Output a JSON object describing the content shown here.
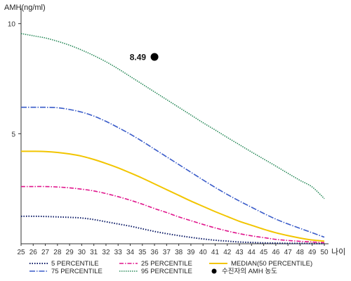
{
  "chart_data": {
    "type": "line",
    "ylabel": "AMH(ng/ml)",
    "xlabel": "나이",
    "x": [
      25,
      26,
      27,
      28,
      29,
      30,
      31,
      32,
      33,
      34,
      35,
      36,
      37,
      38,
      39,
      40,
      41,
      42,
      43,
      44,
      45,
      46,
      47,
      48,
      49,
      50
    ],
    "xlim": [
      25,
      50
    ],
    "ylim": [
      0,
      10.5
    ],
    "yticks": [
      5,
      10
    ],
    "series": [
      {
        "name": "5 PERCENTILE",
        "color": "#0b1a66",
        "dash": "1.5,2",
        "width": 2,
        "values": [
          1.25,
          1.25,
          1.24,
          1.22,
          1.2,
          1.17,
          1.1,
          1.0,
          0.9,
          0.8,
          0.68,
          0.56,
          0.46,
          0.37,
          0.29,
          0.22,
          0.16,
          0.12,
          0.08,
          0.06,
          0.04,
          0.03,
          0.02,
          0.02,
          0.01,
          0.01
        ]
      },
      {
        "name": "25 PERCENTILE",
        "color": "#e0158c",
        "dash": "6,2,1.5,2",
        "width": 1.6,
        "values": [
          2.6,
          2.6,
          2.6,
          2.58,
          2.54,
          2.48,
          2.4,
          2.28,
          2.14,
          1.98,
          1.8,
          1.6,
          1.42,
          1.22,
          1.05,
          0.88,
          0.72,
          0.58,
          0.46,
          0.36,
          0.28,
          0.2,
          0.15,
          0.11,
          0.08,
          0.05
        ]
      },
      {
        "name": "MEDIAN(50 PERCENTILE)",
        "color": "#f2c500",
        "dash": "",
        "width": 2,
        "values": [
          4.2,
          4.2,
          4.19,
          4.15,
          4.08,
          3.98,
          3.83,
          3.65,
          3.45,
          3.22,
          2.98,
          2.72,
          2.46,
          2.2,
          1.94,
          1.7,
          1.46,
          1.24,
          1.02,
          0.84,
          0.66,
          0.5,
          0.37,
          0.26,
          0.17,
          0.12
        ]
      },
      {
        "name": "75 PERCENTILE",
        "color": "#3a5cc9",
        "dash": "8,2,1.5,2",
        "width": 1.6,
        "values": [
          6.2,
          6.2,
          6.2,
          6.18,
          6.1,
          5.98,
          5.8,
          5.56,
          5.28,
          4.98,
          4.65,
          4.3,
          3.95,
          3.6,
          3.25,
          2.9,
          2.56,
          2.24,
          1.94,
          1.66,
          1.38,
          1.12,
          0.9,
          0.7,
          0.5,
          0.3
        ]
      },
      {
        "name": "95 PERCENTILE",
        "color": "#2a8a5a",
        "dash": "1.5,1.5",
        "width": 1.6,
        "values": [
          9.55,
          9.45,
          9.35,
          9.2,
          9.02,
          8.8,
          8.55,
          8.27,
          7.95,
          7.6,
          7.25,
          6.9,
          6.55,
          6.2,
          5.85,
          5.5,
          5.17,
          4.83,
          4.5,
          4.17,
          3.85,
          3.53,
          3.2,
          2.88,
          2.58,
          2.05
        ]
      }
    ],
    "highlight": {
      "name": "수진자의 AMH 농도",
      "x": 36,
      "y": 8.49,
      "label": "8.49",
      "color": "#000000"
    },
    "legend_position": "bottom",
    "grid": false
  }
}
